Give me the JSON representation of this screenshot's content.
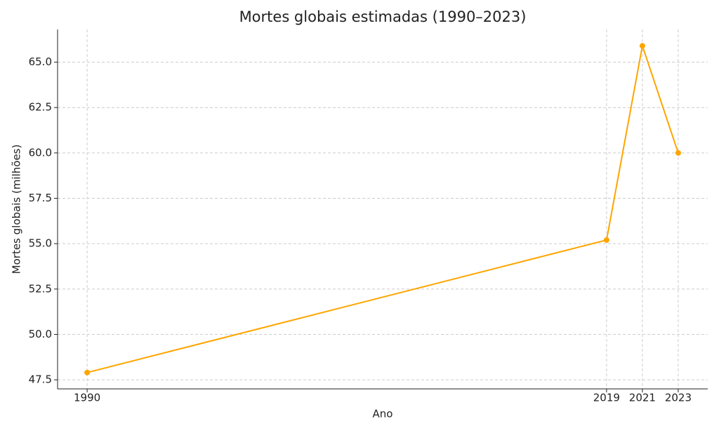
{
  "chart_data": {
    "type": "line",
    "title": "Mortes globais estimadas (1990–2023)",
    "x_label": "Ano",
    "y_label": "Mortes globais (milhões)",
    "x": [
      1990,
      2019,
      2021,
      2023
    ],
    "series": [
      {
        "name": "Mortes globais",
        "color": "#ffa500",
        "values": [
          47.9,
          55.2,
          65.9,
          60.0
        ]
      }
    ],
    "xlim": [
      1988.35,
      2024.65
    ],
    "xticks": [
      1990,
      2019,
      2021,
      2023
    ],
    "ylim": [
      47.0,
      66.8
    ],
    "yticks": [
      47.5,
      {
        "value": 50,
        "label": "50.0"
      },
      52.5,
      {
        "value": 55,
        "label": "55.0"
      },
      57.5,
      {
        "value": 60,
        "label": "60.0"
      },
      62.5,
      {
        "value": 65,
        "label": "65.0"
      }
    ],
    "grid": true
  }
}
